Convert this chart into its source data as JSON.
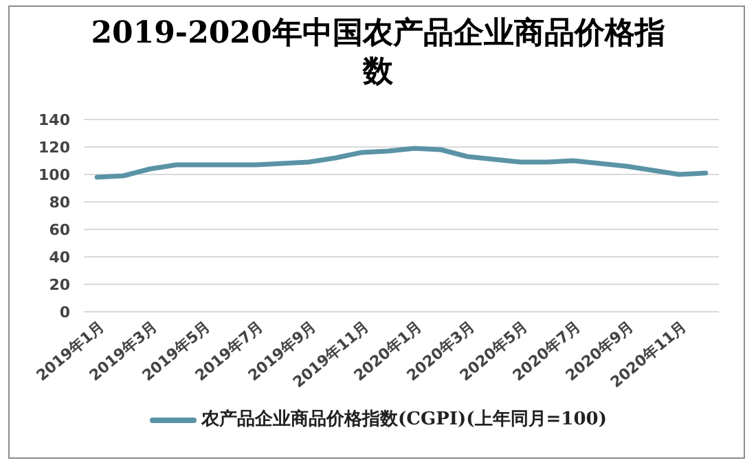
{
  "chart_data": {
    "type": "line",
    "title": "2019-2020年中国农产品企业商品价格指数",
    "categories": [
      "2019年1月",
      null,
      "2019年3月",
      null,
      "2019年5月",
      null,
      "2019年7月",
      null,
      "2019年9月",
      null,
      "2019年11月",
      null,
      "2020年1月",
      null,
      "2020年3月",
      null,
      "2020年5月",
      null,
      "2020年7月",
      null,
      "2020年9月",
      null,
      "2020年11月",
      null
    ],
    "series": [
      {
        "name": "农产品企业商品价格指数(CGPI)(上年同月=100)",
        "color": "#5a93a6",
        "values": [
          98,
          99,
          104,
          107,
          107,
          107,
          107,
          108,
          109,
          112,
          116,
          117,
          119,
          118,
          113,
          111,
          109,
          109,
          110,
          108,
          106,
          103,
          100,
          101
        ]
      }
    ],
    "ylim": [
      0,
      140
    ],
    "yticks": [
      0,
      20,
      40,
      60,
      80,
      100,
      120,
      140
    ],
    "grid": "y",
    "legend": "bottom",
    "marker": "none",
    "line_style": "solid"
  }
}
